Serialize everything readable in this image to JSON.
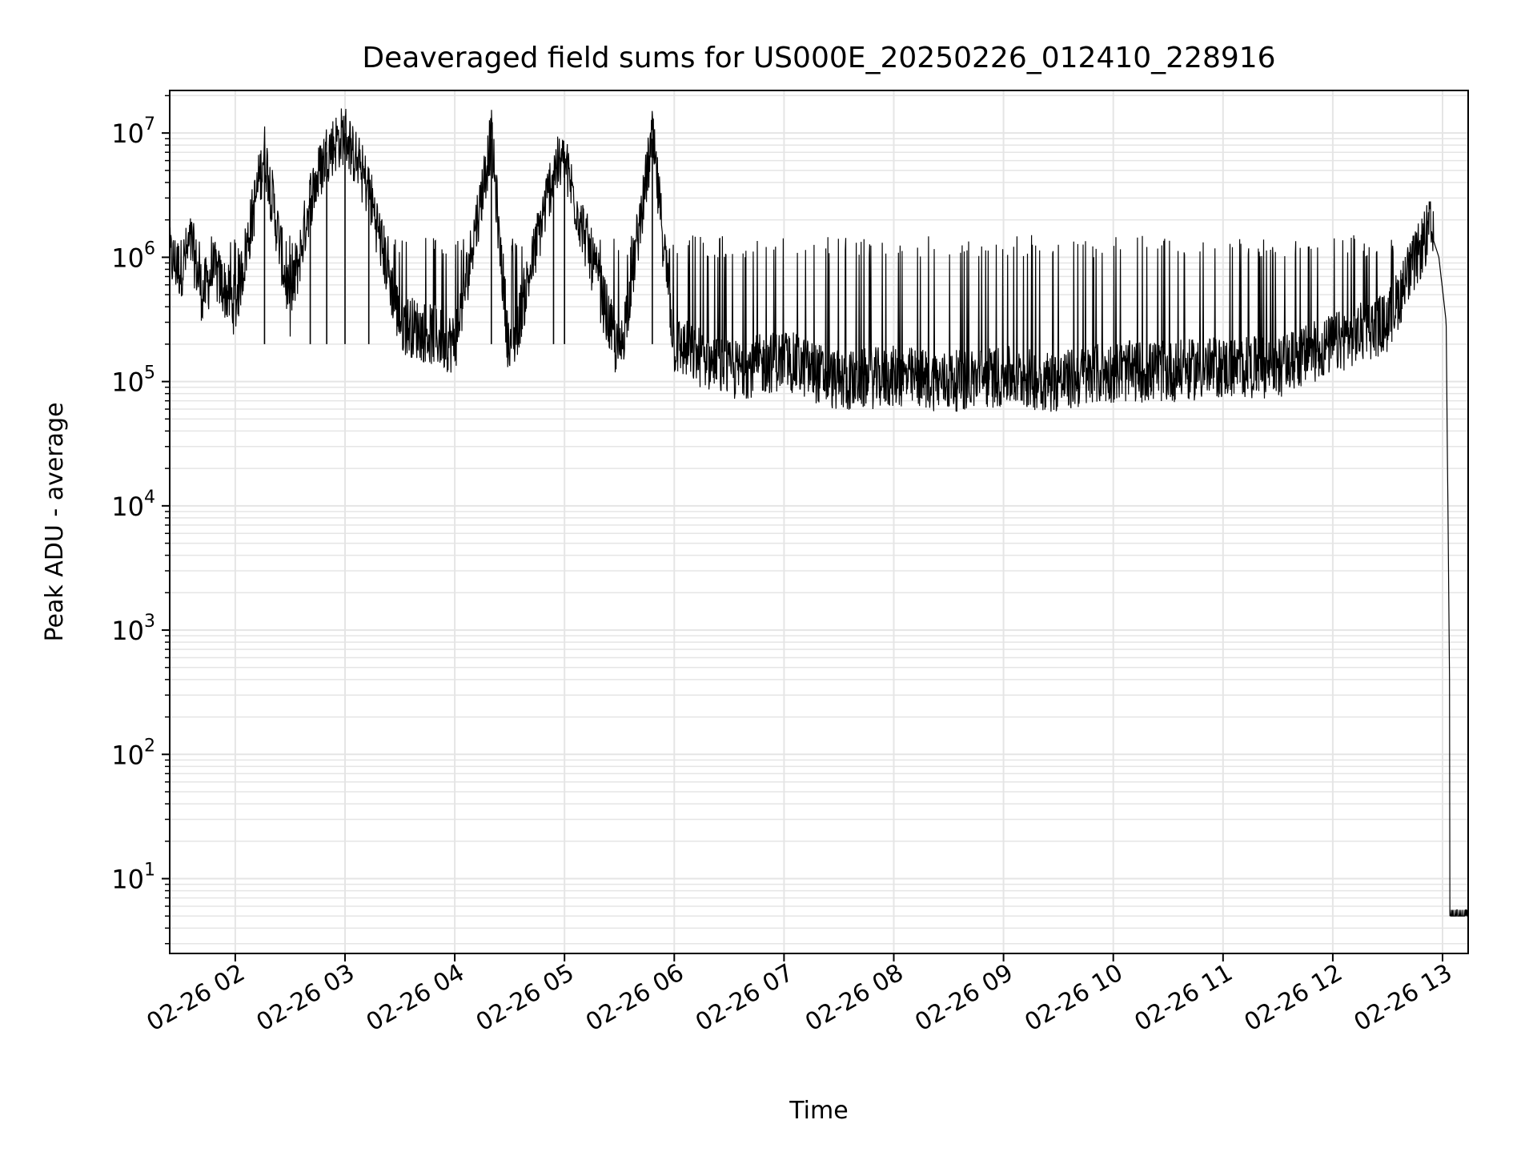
{
  "chart_data": {
    "type": "line",
    "title": "Deaveraged field sums for US000E_20250226_012410_228916",
    "xlabel": "Time",
    "ylabel": "Peak ADU - average",
    "yscale": "log",
    "ylim": [
      2.5,
      22000000
    ],
    "xlim": [
      "2025-02-26T01:24:10",
      "2025-02-26T13:14:00"
    ],
    "x_ticks": [
      "2025-02-26T02:00",
      "2025-02-26T03:00",
      "2025-02-26T04:00",
      "2025-02-26T05:00",
      "2025-02-26T06:00",
      "2025-02-26T07:00",
      "2025-02-26T08:00",
      "2025-02-26T09:00",
      "2025-02-26T10:00",
      "2025-02-26T11:00",
      "2025-02-26T12:00",
      "2025-02-26T13:00"
    ],
    "x_tick_labels": [
      "02-26 02",
      "02-26 03",
      "02-26 04",
      "02-26 05",
      "02-26 06",
      "02-26 07",
      "02-26 08",
      "02-26 09",
      "02-26 10",
      "02-26 11",
      "02-26 12",
      "02-26 13"
    ],
    "y_ticks": [
      10,
      100,
      1000,
      10000,
      100000,
      1000000,
      10000000
    ],
    "y_tick_labels": [
      {
        "base": "10",
        "exp": "1"
      },
      {
        "base": "10",
        "exp": "2"
      },
      {
        "base": "10",
        "exp": "3"
      },
      {
        "base": "10",
        "exp": "4"
      },
      {
        "base": "10",
        "exp": "5"
      },
      {
        "base": "10",
        "exp": "6"
      },
      {
        "base": "10",
        "exp": "7"
      }
    ],
    "grid": true,
    "line_color": "#000000",
    "grid_color": "#e5e5e5",
    "series": [
      {
        "x": [
          "2025-02-26T01:24",
          "2025-02-26T01:30",
          "2025-02-26T01:36",
          "2025-02-26T01:42",
          "2025-02-26T01:48",
          "2025-02-26T02:00",
          "2025-02-26T02:16",
          "2025-02-26T02:30",
          "2025-02-26T02:41",
          "2025-02-26T02:50",
          "2025-02-26T03:00",
          "2025-02-26T03:13",
          "2025-02-26T03:30",
          "2025-02-26T04:00",
          "2025-02-26T04:20",
          "2025-02-26T04:30",
          "2025-02-26T04:54",
          "2025-02-26T05:00",
          "2025-02-26T05:30",
          "2025-02-26T05:48",
          "2025-02-26T06:00",
          "2025-02-26T06:30",
          "2025-02-26T07:00",
          "2025-02-26T07:30",
          "2025-02-26T08:00",
          "2025-02-26T08:30",
          "2025-02-26T09:00",
          "2025-02-26T09:30",
          "2025-02-26T10:00",
          "2025-02-26T10:30",
          "2025-02-26T11:00",
          "2025-02-26T11:30",
          "2025-02-26T12:00",
          "2025-02-26T12:30",
          "2025-02-26T12:53",
          "2025-02-26T12:58",
          "2025-02-26T13:02",
          "2025-02-26T13:05",
          "2025-02-26T13:14"
        ],
        "y": [
          1000000,
          800000,
          1300000,
          500000,
          800000,
          400000,
          7000000,
          400000,
          3000000,
          7000000,
          10000000,
          3500000,
          300000,
          200000,
          9000000,
          150000,
          5000000,
          5800000,
          150000,
          9000000,
          200000,
          120000,
          150000,
          100000,
          110000,
          100000,
          110000,
          100000,
          120000,
          120000,
          130000,
          130000,
          200000,
          300000,
          1700000,
          1000000,
          300000,
          5,
          5
        ]
      }
    ]
  }
}
